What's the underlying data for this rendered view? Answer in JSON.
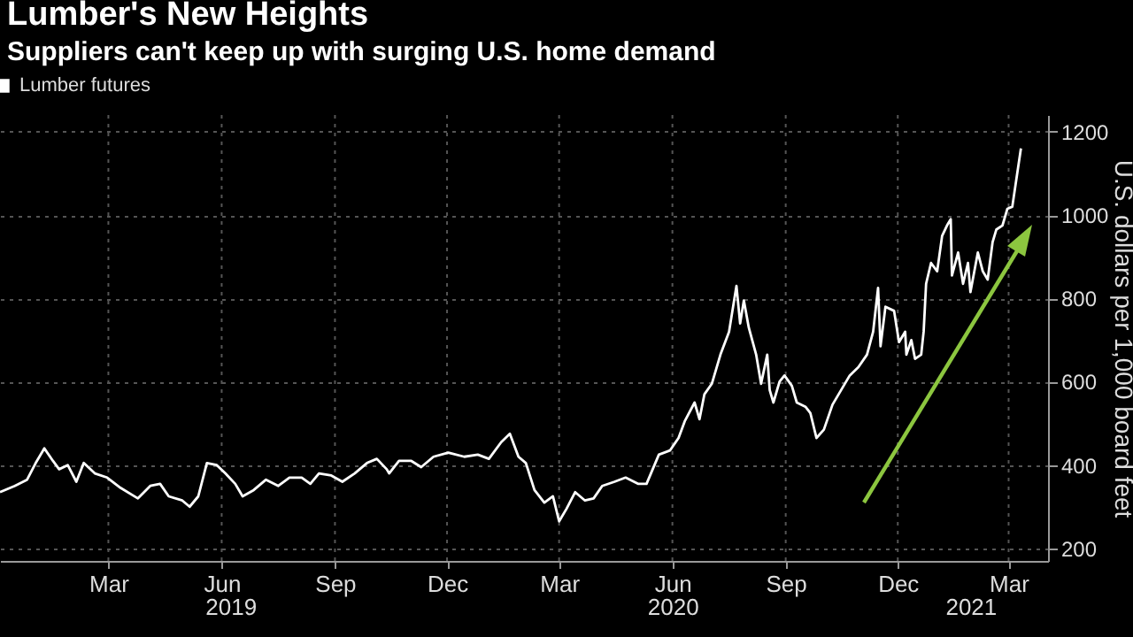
{
  "chart_data": {
    "type": "line",
    "title": "Lumber's New Heights",
    "subtitle": "Suppliers can't keep up with surging U.S. home demand",
    "ylabel": "U.S. dollars per 1,000 board feet",
    "x": [
      "2018-12-03",
      "2018-12-15",
      "2018-12-25",
      "2019-01-01",
      "2019-01-08",
      "2019-01-15",
      "2019-01-20",
      "2019-01-27",
      "2019-02-03",
      "2019-02-09",
      "2019-02-18",
      "2019-02-28",
      "2019-03-11",
      "2019-03-25",
      "2019-04-04",
      "2019-04-12",
      "2019-04-19",
      "2019-04-30",
      "2019-05-06",
      "2019-05-13",
      "2019-05-20",
      "2019-05-28",
      "2019-06-04",
      "2019-06-12",
      "2019-06-18",
      "2019-06-27",
      "2019-07-07",
      "2019-07-17",
      "2019-07-26",
      "2019-08-05",
      "2019-08-12",
      "2019-08-19",
      "2019-08-29",
      "2019-09-07",
      "2019-09-17",
      "2019-09-27",
      "2019-10-05",
      "2019-10-13",
      "2019-10-15",
      "2019-10-23",
      "2019-11-02",
      "2019-11-10",
      "2019-11-20",
      "2019-12-02",
      "2019-12-15",
      "2019-12-26",
      "2020-01-04",
      "2020-01-14",
      "2020-01-21",
      "2020-01-28",
      "2020-02-03",
      "2020-02-10",
      "2020-02-18",
      "2020-02-25",
      "2020-03-01",
      "2020-03-07",
      "2020-03-14",
      "2020-03-22",
      "2020-03-29",
      "2020-04-05",
      "2020-04-15",
      "2020-04-24",
      "2020-05-04",
      "2020-05-11",
      "2020-05-21",
      "2020-05-30",
      "2020-06-06",
      "2020-06-11",
      "2020-06-19",
      "2020-06-23",
      "2020-06-27",
      "2020-07-03",
      "2020-07-10",
      "2020-07-17",
      "2020-07-23",
      "2020-07-26",
      "2020-07-29",
      "2020-08-02",
      "2020-08-08",
      "2020-08-12",
      "2020-08-17",
      "2020-08-19",
      "2020-08-22",
      "2020-08-27",
      "2020-08-31",
      "2020-09-06",
      "2020-09-10",
      "2020-09-17",
      "2020-09-21",
      "2020-09-26",
      "2020-10-02",
      "2020-10-09",
      "2020-10-16",
      "2020-10-23",
      "2020-10-30",
      "2020-11-06",
      "2020-11-11",
      "2020-11-15",
      "2020-11-17",
      "2020-11-21",
      "2020-11-28",
      "2020-12-02",
      "2020-12-07",
      "2020-12-08",
      "2020-12-12",
      "2020-12-15",
      "2020-12-20",
      "2020-12-22",
      "2020-12-24",
      "2020-12-28",
      "2021-01-02",
      "2021-01-06",
      "2021-01-10",
      "2021-01-13",
      "2021-01-14",
      "2021-01-19",
      "2021-01-23",
      "2021-01-27",
      "2021-01-29",
      "2021-02-04",
      "2021-02-08",
      "2021-02-12",
      "2021-02-16",
      "2021-02-19",
      "2021-02-24",
      "2021-02-28",
      "2021-03-04",
      "2021-03-09",
      "2021-03-11"
    ],
    "series": [
      {
        "name": "Lumber futures",
        "color": "#ffffff",
        "values": [
          335,
          350,
          365,
          405,
          440,
          410,
          390,
          400,
          360,
          405,
          380,
          370,
          345,
          320,
          350,
          355,
          325,
          315,
          300,
          325,
          405,
          400,
          380,
          355,
          325,
          340,
          365,
          350,
          370,
          370,
          355,
          380,
          375,
          360,
          380,
          405,
          415,
          390,
          380,
          410,
          410,
          395,
          420,
          430,
          420,
          425,
          415,
          455,
          475,
          420,
          405,
          340,
          310,
          325,
          265,
          295,
          335,
          315,
          320,
          350,
          360,
          370,
          355,
          355,
          425,
          435,
          465,
          505,
          550,
          510,
          570,
          595,
          665,
          720,
          830,
          740,
          795,
          730,
          665,
          595,
          665,
          580,
          550,
          600,
          615,
          590,
          550,
          540,
          525,
          465,
          485,
          545,
          580,
          615,
          635,
          665,
          720,
          825,
          685,
          780,
          770,
          695,
          720,
          665,
          700,
          655,
          665,
          720,
          835,
          885,
          865,
          950,
          975,
          990,
          855,
          910,
          835,
          885,
          815,
          910,
          865,
          845,
          935,
          965,
          975,
          1015,
          1020,
          1120,
          1160
        ]
      }
    ],
    "xlim": [
      "2018-12-03",
      "2021-04-02"
    ],
    "xticks": [
      {
        "value": "2019-03-01",
        "label": "Mar"
      },
      {
        "value": "2019-06-01",
        "label": "Jun"
      },
      {
        "value": "2019-09-01",
        "label": "Sep"
      },
      {
        "value": "2019-12-01",
        "label": "Dec"
      },
      {
        "value": "2020-03-01",
        "label": "Mar"
      },
      {
        "value": "2020-06-01",
        "label": "Jun"
      },
      {
        "value": "2020-09-01",
        "label": "Sep"
      },
      {
        "value": "2020-12-01",
        "label": "Dec"
      },
      {
        "value": "2021-03-01",
        "label": "Mar"
      }
    ],
    "x2lim": [
      "2018-12-03",
      "2021-04-02"
    ],
    "x2ticks": [
      {
        "value": "2019-06-08",
        "label": "2019"
      },
      {
        "value": "2020-06-01",
        "label": "2020"
      },
      {
        "value": "2021-01-29",
        "label": "2021"
      }
    ],
    "ylim": [
      170,
      1240
    ],
    "yticks": [
      200,
      400,
      600,
      800,
      1000,
      1200
    ],
    "grid": true,
    "legend": "top left"
  }
}
